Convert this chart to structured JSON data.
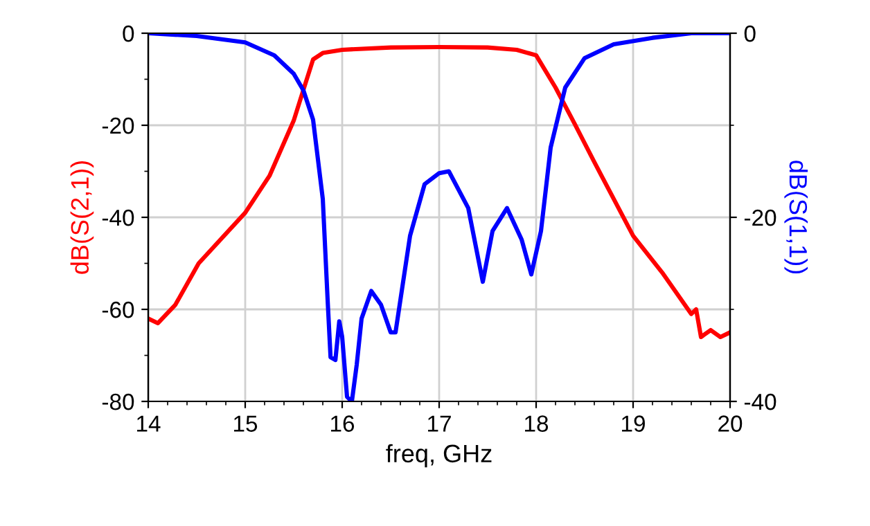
{
  "chart_data": {
    "type": "line",
    "xlabel": "freq, GHz",
    "ylabel": "dB(S(2,1))",
    "y2label": "dB(S(1,1))",
    "grid": true,
    "marker": "none",
    "line_style": "solid",
    "xlim": [
      14,
      20
    ],
    "xticks": [
      14,
      15,
      16,
      17,
      18,
      19,
      20
    ],
    "ylim": [
      -80,
      0
    ],
    "yticks": [
      -80,
      -60,
      -40,
      -20,
      0
    ],
    "y2lim": [
      -40,
      0
    ],
    "y2ticks": [
      -40,
      -20,
      0
    ],
    "series": [
      {
        "color": "#ff0000",
        "x": [
          14.0,
          14.1,
          14.28,
          14.52,
          15.0,
          15.25,
          15.5,
          15.6,
          15.7,
          15.8,
          16.0,
          16.5,
          17.0,
          17.5,
          17.8,
          18.0,
          18.2,
          18.4,
          18.6,
          18.8,
          19.0,
          19.3,
          19.5,
          19.6,
          19.65,
          19.7,
          19.8,
          19.9,
          20.0
        ],
        "values": [
          -62,
          -63,
          -59,
          -50,
          -39,
          -31,
          -19,
          -12.3,
          -5.7,
          -4.3,
          -3.6,
          -3.1,
          -3,
          -3.1,
          -3.6,
          -4.8,
          -11.8,
          -19.8,
          -28,
          -36,
          -44,
          -52,
          -58,
          -61,
          -60,
          -66,
          -64.5,
          -66,
          -65
        ]
      },
      {
        "color": "#0000ff",
        "axis": "y2",
        "x": [
          14.0,
          14.5,
          15.0,
          15.3,
          15.5,
          15.6,
          15.7,
          15.8,
          15.85,
          15.88,
          15.93,
          15.97,
          16.0,
          16.05,
          16.1,
          16.15,
          16.2,
          16.3,
          16.4,
          16.5,
          16.55,
          16.7,
          16.85,
          17.0,
          17.1,
          17.3,
          17.45,
          17.55,
          17.7,
          17.85,
          17.95,
          18.05,
          18.15,
          18.3,
          18.5,
          18.8,
          19.2,
          19.6,
          20.0
        ],
        "values": [
          0,
          -0.3,
          -1,
          -2.4,
          -4.4,
          -6.2,
          -9.4,
          -18,
          -29,
          -35.2,
          -35.5,
          -31.3,
          -33,
          -39.5,
          -40,
          -36,
          -31,
          -28,
          -29.5,
          -32.5,
          -32.5,
          -22,
          -16.4,
          -15.2,
          -15,
          -19,
          -27,
          -21.5,
          -19,
          -22.4,
          -26.2,
          -21.5,
          -12.4,
          -5.9,
          -2.7,
          -1.2,
          -0.5,
          0,
          0
        ]
      }
    ]
  }
}
